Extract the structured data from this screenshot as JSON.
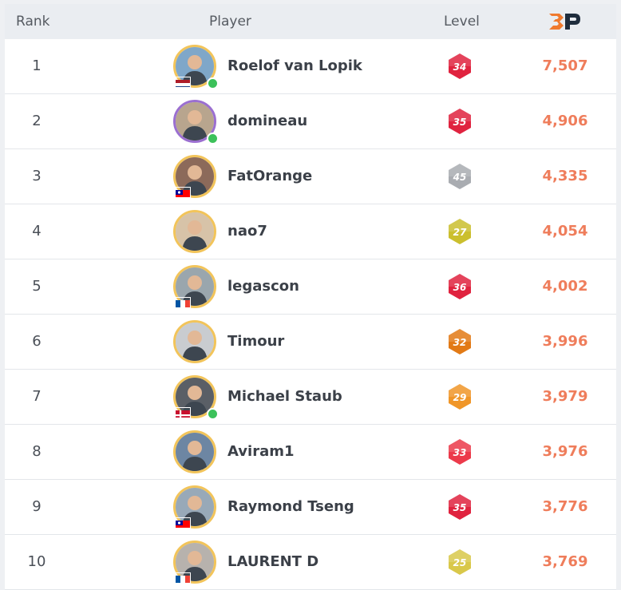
{
  "header": {
    "rank_label": "Rank",
    "player_label": "Player",
    "level_label": "Level",
    "points_icon": "bp-logo-icon"
  },
  "colors": {
    "points": "#ef7d5b",
    "online": "#3cc15a",
    "avatar_ring": "#f2c45a"
  },
  "players": [
    {
      "rank": "1",
      "name": "Roelof van Lopik",
      "level": "34",
      "level_color": "#e0233f",
      "points": "7,507",
      "flag": "netherlands",
      "online": true
    },
    {
      "rank": "2",
      "name": "domineau",
      "level": "35",
      "level_color": "#e0233f",
      "points": "4,906",
      "flag": "",
      "online": true
    },
    {
      "rank": "3",
      "name": "FatOrange",
      "level": "45",
      "level_color": "#a9acb1",
      "points": "4,335",
      "flag": "taiwan",
      "online": false
    },
    {
      "rank": "4",
      "name": "nao7",
      "level": "27",
      "level_color": "#cbbf2e",
      "points": "4,054",
      "flag": "",
      "online": false
    },
    {
      "rank": "5",
      "name": "legascon",
      "level": "36",
      "level_color": "#e0233f",
      "points": "4,002",
      "flag": "france",
      "online": false
    },
    {
      "rank": "6",
      "name": "Timour",
      "level": "32",
      "level_color": "#e27a16",
      "points": "3,996",
      "flag": "",
      "online": false
    },
    {
      "rank": "7",
      "name": "Michael Staub",
      "level": "29",
      "level_color": "#f09628",
      "points": "3,979",
      "flag": "denmark",
      "online": true
    },
    {
      "rank": "8",
      "name": "Aviram1",
      "level": "33",
      "level_color": "#ec3a4b",
      "points": "3,976",
      "flag": "",
      "online": false
    },
    {
      "rank": "9",
      "name": "Raymond Tseng",
      "level": "35",
      "level_color": "#e0233f",
      "points": "3,776",
      "flag": "taiwan",
      "online": false
    },
    {
      "rank": "10",
      "name": "LAURENT D",
      "level": "25",
      "level_color": "#d9c84a",
      "points": "3,769",
      "flag": "france",
      "online": false
    }
  ]
}
